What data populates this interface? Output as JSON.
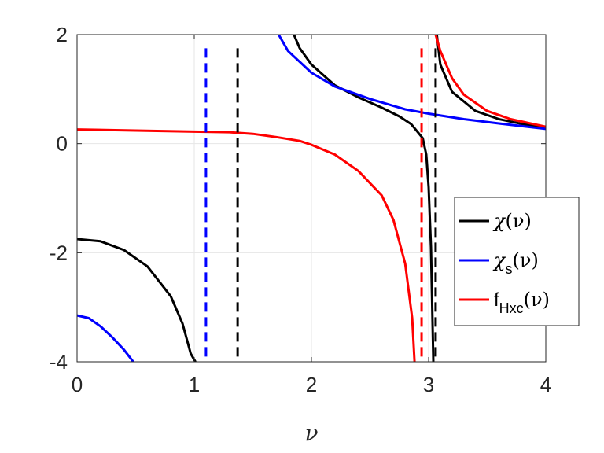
{
  "chart_data": {
    "type": "line",
    "xlabel": "ν",
    "ylabel": "",
    "title": "",
    "xlim": [
      0,
      4
    ],
    "ylim": [
      -4,
      2
    ],
    "xticks": [
      0,
      1,
      2,
      3,
      4
    ],
    "yticks": [
      -4,
      -2,
      0,
      2
    ],
    "xtick_labels": [
      "0",
      "1",
      "2",
      "3",
      "4"
    ],
    "ytick_labels": [
      "-4",
      "-2",
      "0",
      "2"
    ],
    "grid": true,
    "legend_position": "lower-right",
    "colors": {
      "chi": "#000000",
      "chi_s": "#0000ff",
      "f_hxc": "#ff0000"
    },
    "series": [
      {
        "name": "χ(ν)",
        "color": "#000000",
        "style": "solid",
        "points": [
          [
            0.0,
            -1.75
          ],
          [
            0.2,
            -1.79
          ],
          [
            0.4,
            -1.95
          ],
          [
            0.6,
            -2.25
          ],
          [
            0.8,
            -2.8
          ],
          [
            0.9,
            -3.3
          ],
          [
            0.97,
            -3.85
          ],
          [
            1.01,
            -4.0
          ]
        ],
        "points_2": [
          [
            1.85,
            2.0
          ],
          [
            1.9,
            1.75
          ],
          [
            2.0,
            1.45
          ],
          [
            2.2,
            1.07
          ],
          [
            2.4,
            0.85
          ],
          [
            2.6,
            0.66
          ],
          [
            2.75,
            0.5
          ],
          [
            2.85,
            0.36
          ],
          [
            2.95,
            0.1
          ],
          [
            2.98,
            -0.2
          ],
          [
            3.0,
            -0.8
          ],
          [
            3.02,
            -1.9
          ],
          [
            3.04,
            -4.0
          ]
        ],
        "points_3": [
          [
            3.07,
            2.0
          ],
          [
            3.1,
            1.45
          ],
          [
            3.2,
            0.95
          ],
          [
            3.4,
            0.6
          ],
          [
            3.6,
            0.45
          ],
          [
            3.8,
            0.36
          ],
          [
            4.0,
            0.3
          ]
        ]
      },
      {
        "name": "χs(ν)",
        "color": "#0000ff",
        "style": "solid",
        "points": [
          [
            0.0,
            -3.15
          ],
          [
            0.1,
            -3.2
          ],
          [
            0.2,
            -3.35
          ],
          [
            0.3,
            -3.55
          ],
          [
            0.4,
            -3.78
          ],
          [
            0.48,
            -4.0
          ]
        ],
        "points_2": [
          [
            1.72,
            2.0
          ],
          [
            1.8,
            1.7
          ],
          [
            2.0,
            1.3
          ],
          [
            2.2,
            1.05
          ],
          [
            2.5,
            0.82
          ],
          [
            2.8,
            0.63
          ],
          [
            3.0,
            0.55
          ],
          [
            3.3,
            0.45
          ],
          [
            3.6,
            0.37
          ],
          [
            4.0,
            0.27
          ]
        ]
      },
      {
        "name": "fHxc(ν)",
        "color": "#ff0000",
        "style": "solid",
        "points": [
          [
            0.0,
            0.26
          ],
          [
            0.5,
            0.24
          ],
          [
            1.0,
            0.22
          ],
          [
            1.3,
            0.21
          ],
          [
            1.5,
            0.18
          ],
          [
            1.7,
            0.12
          ],
          [
            1.9,
            0.05
          ],
          [
            2.0,
            -0.02
          ],
          [
            2.2,
            -0.2
          ],
          [
            2.4,
            -0.5
          ],
          [
            2.6,
            -0.95
          ],
          [
            2.7,
            -1.4
          ],
          [
            2.8,
            -2.2
          ],
          [
            2.86,
            -3.2
          ],
          [
            2.88,
            -4.0
          ]
        ],
        "points_2": [
          [
            3.06,
            2.0
          ],
          [
            3.1,
            1.7
          ],
          [
            3.2,
            1.2
          ],
          [
            3.3,
            0.9
          ],
          [
            3.5,
            0.6
          ],
          [
            3.7,
            0.45
          ],
          [
            4.0,
            0.31
          ]
        ]
      },
      {
        "name": "",
        "color": "#0000ff",
        "style": "dashed",
        "vertical_x": 1.1
      },
      {
        "name": "",
        "color": "#000000",
        "style": "dashed",
        "vertical_x": 1.37
      },
      {
        "name": "",
        "color": "#ff0000",
        "style": "dashed",
        "vertical_x": 2.94
      },
      {
        "name": "",
        "color": "#000000",
        "style": "dashed",
        "vertical_x": 3.06
      }
    ],
    "legend": [
      {
        "label_main": "χ",
        "label_arg": "(ν)",
        "sub": "",
        "prefix": "",
        "color": "#000000"
      },
      {
        "label_main": "χ",
        "label_arg": "(ν)",
        "sub": "s",
        "prefix": "",
        "color": "#0000ff"
      },
      {
        "label_main": "",
        "label_arg": "(ν)",
        "sub": "Hxc",
        "prefix": "f",
        "color": "#ff0000"
      }
    ]
  }
}
